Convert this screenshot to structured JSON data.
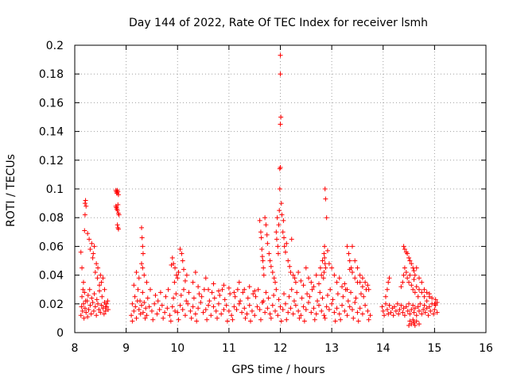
{
  "chart_data": {
    "type": "scatter",
    "title": "Day 144 of 2022, Rate Of TEC Index for receiver lsmh",
    "xlabel": "GPS time / hours",
    "ylabel": "ROTI / TECUs",
    "xlim": [
      8,
      16
    ],
    "ylim": [
      0,
      0.2
    ],
    "x_ticks": [
      "8",
      "9",
      "10",
      "11",
      "12",
      "13",
      "14",
      "15",
      "16"
    ],
    "y_ticks": [
      "0",
      "0.02",
      "0.04",
      "0.06",
      "0.08",
      "0.1",
      "0.12",
      "0.14",
      "0.16",
      "0.18",
      "0.2"
    ],
    "grid": true,
    "marker": "+",
    "colors": {
      "series": "#ff0000",
      "grid": "#a0a0a0",
      "axis": "#000000"
    },
    "series": [
      {
        "x": [
          8.12,
          8.13,
          8.15,
          8.17,
          8.18,
          8.2,
          8.22,
          8.24,
          8.25,
          8.27,
          8.3,
          8.32,
          8.35,
          8.37,
          8.4,
          8.42,
          8.45,
          8.47,
          8.5,
          8.52,
          8.55,
          8.57,
          8.6,
          8.62,
          8.65,
          8.14,
          8.16,
          8.19,
          8.21,
          8.26,
          8.29,
          8.33,
          8.38,
          8.43,
          8.48,
          8.53,
          8.58,
          8.2,
          8.21,
          8.22,
          8.2,
          8.19,
          8.25,
          8.28,
          8.3,
          8.35,
          8.38,
          8.42,
          8.45,
          8.5,
          8.52,
          8.55,
          8.58,
          8.33,
          8.36,
          8.4,
          8.44,
          8.48,
          8.12,
          8.14,
          8.17,
          8.62,
          8.64,
          8.6,
          8.8,
          8.81,
          8.82,
          8.83,
          8.84,
          8.85,
          8.8,
          8.81,
          8.82,
          8.83,
          8.84,
          8.85,
          8.86,
          8.83,
          8.84,
          8.85,
          9.1,
          9.12,
          9.15,
          9.18,
          9.2,
          9.22,
          9.25,
          9.28,
          9.3,
          9.33,
          9.35,
          9.38,
          9.4,
          9.45,
          9.5,
          9.55,
          9.6,
          9.65,
          9.7,
          9.75,
          9.8,
          9.85,
          9.9,
          9.95,
          10.0,
          10.05,
          10.1,
          10.15,
          10.2,
          10.25,
          10.3,
          10.35,
          10.4,
          10.45,
          10.5,
          10.55,
          10.6,
          10.65,
          10.7,
          10.75,
          10.8,
          10.85,
          10.9,
          10.95,
          11.0,
          11.05,
          11.1,
          11.15,
          11.2,
          11.25,
          11.3,
          11.35,
          11.4,
          11.45,
          11.5,
          11.55,
          11.6,
          11.65,
          11.7,
          11.75,
          11.8,
          11.85,
          11.9,
          11.95,
          12.0,
          12.05,
          12.1,
          12.15,
          12.2,
          12.25,
          12.3,
          12.35,
          12.4,
          12.45,
          12.5,
          12.55,
          12.6,
          12.65,
          12.7,
          12.75,
          12.8,
          12.85,
          12.9,
          12.95,
          13.0,
          13.05,
          13.1,
          13.15,
          13.2,
          13.25,
          13.3,
          13.35,
          13.4,
          13.45,
          13.5,
          13.55,
          13.6,
          13.65,
          13.7,
          13.75,
          9.12,
          9.17,
          9.23,
          9.27,
          9.32,
          9.37,
          9.42,
          9.47,
          9.52,
          9.57,
          9.62,
          9.67,
          9.72,
          9.77,
          9.82,
          9.87,
          9.92,
          9.97,
          10.02,
          10.07,
          10.12,
          10.17,
          10.22,
          10.27,
          10.32,
          10.37,
          10.42,
          10.47,
          10.52,
          10.57,
          10.62,
          10.67,
          10.72,
          10.77,
          10.82,
          10.87,
          10.92,
          10.97,
          11.02,
          11.07,
          11.12,
          11.17,
          11.22,
          11.27,
          11.32,
          11.37,
          11.42,
          11.47,
          11.52,
          11.57,
          11.62,
          11.67,
          11.72,
          11.77,
          11.82,
          11.87,
          11.92,
          11.97,
          12.02,
          12.07,
          12.12,
          12.17,
          12.22,
          12.27,
          12.32,
          12.37,
          12.42,
          12.47,
          12.52,
          12.57,
          12.62,
          12.67,
          12.72,
          12.77,
          12.82,
          12.87,
          12.92,
          12.97,
          13.02,
          13.07,
          13.12,
          13.17,
          13.22,
          13.27,
          13.32,
          13.37,
          13.42,
          13.47,
          13.52,
          13.57,
          13.62,
          13.67,
          13.72,
          9.3,
          9.31,
          9.32,
          9.33,
          9.3,
          9.32,
          9.35,
          9.4,
          9.25,
          9.2,
          9.15,
          9.9,
          9.92,
          9.95,
          9.98,
          10.0,
          10.02,
          10.05,
          10.08,
          10.1,
          10.12,
          10.15,
          10.18,
          9.88,
          9.94,
          10.3,
          10.35,
          10.4,
          10.55,
          10.6,
          10.7,
          10.8,
          10.9,
          11.0,
          11.1,
          11.2,
          11.3,
          11.4,
          11.5,
          11.6,
          11.62,
          11.63,
          11.64,
          11.65,
          11.66,
          11.67,
          11.68,
          11.7,
          11.72,
          11.74,
          11.75,
          11.78,
          11.8,
          11.82,
          11.85,
          11.88,
          11.9,
          11.92,
          11.93,
          11.94,
          11.95,
          11.96,
          11.97,
          11.98,
          11.99,
          12.0,
          12.0,
          12.0,
          12.0,
          12.01,
          11.99,
          12.02,
          12.03,
          12.05,
          12.06,
          12.07,
          12.08,
          12.1,
          12.12,
          12.15,
          12.18,
          12.2,
          12.22,
          12.25,
          12.28,
          12.3,
          12.35,
          12.4,
          12.45,
          12.5,
          12.55,
          12.6,
          12.65,
          12.7,
          12.75,
          12.78,
          12.8,
          12.82,
          12.84,
          12.85,
          12.86,
          12.87,
          12.88,
          12.9,
          12.92,
          12.95,
          13.0,
          13.05,
          13.1,
          13.15,
          13.2,
          13.25,
          13.3,
          13.35,
          13.4,
          13.45,
          13.5,
          13.55,
          13.6,
          12.85,
          12.86,
          12.87,
          12.88,
          13.3,
          13.33,
          13.35,
          13.38,
          13.4,
          13.45,
          13.5,
          13.55,
          13.6,
          13.65,
          13.7,
          13.72,
          13.98,
          14.0,
          14.02,
          14.05,
          14.08,
          14.1,
          14.12,
          14.15,
          14.18,
          14.2,
          14.22,
          14.25,
          14.28,
          14.3,
          14.32,
          14.35,
          14.38,
          14.4,
          14.42,
          14.45,
          14.48,
          14.5,
          14.52,
          14.55,
          14.58,
          14.6,
          14.62,
          14.65,
          14.68,
          14.7,
          14.72,
          14.75,
          14.78,
          14.8,
          14.82,
          14.85,
          14.88,
          14.9,
          14.92,
          14.95,
          14.98,
          15.0,
          15.02,
          15.05,
          14.05,
          14.08,
          14.1,
          14.12,
          14.35,
          14.38,
          14.4,
          14.42,
          14.45,
          14.47,
          14.5,
          14.52,
          14.55,
          14.58,
          14.6,
          14.62,
          14.65,
          14.68,
          14.7,
          14.75,
          14.8,
          14.85,
          14.9,
          14.95,
          15.0,
          15.02,
          15.05,
          14.4,
          14.42,
          14.45,
          14.47,
          14.5,
          14.52,
          14.55,
          14.58,
          14.6,
          14.62,
          14.65,
          14.7,
          14.75,
          14.8,
          14.85,
          14.9,
          14.5,
          14.52,
          14.55,
          14.58,
          14.6,
          14.62,
          14.65,
          14.7
        ],
        "y": [
          0.012,
          0.018,
          0.015,
          0.02,
          0.01,
          0.017,
          0.014,
          0.022,
          0.011,
          0.016,
          0.019,
          0.013,
          0.021,
          0.015,
          0.018,
          0.012,
          0.02,
          0.016,
          0.014,
          0.019,
          0.017,
          0.013,
          0.015,
          0.018,
          0.016,
          0.025,
          0.03,
          0.028,
          0.022,
          0.026,
          0.03,
          0.024,
          0.027,
          0.023,
          0.029,
          0.025,
          0.021,
          0.09,
          0.092,
          0.088,
          0.082,
          0.071,
          0.069,
          0.065,
          0.058,
          0.052,
          0.06,
          0.048,
          0.045,
          0.04,
          0.035,
          0.038,
          0.03,
          0.062,
          0.055,
          0.042,
          0.038,
          0.033,
          0.056,
          0.045,
          0.035,
          0.02,
          0.022,
          0.018,
          0.099,
          0.098,
          0.097,
          0.099,
          0.098,
          0.096,
          0.088,
          0.087,
          0.086,
          0.085,
          0.089,
          0.083,
          0.082,
          0.075,
          0.073,
          0.072,
          0.012,
          0.02,
          0.015,
          0.018,
          0.01,
          0.022,
          0.016,
          0.013,
          0.019,
          0.014,
          0.021,
          0.017,
          0.012,
          0.018,
          0.015,
          0.02,
          0.013,
          0.016,
          0.019,
          0.014,
          0.017,
          0.012,
          0.018,
          0.015,
          0.014,
          0.019,
          0.016,
          0.012,
          0.02,
          0.015,
          0.018,
          0.013,
          0.017,
          0.021,
          0.014,
          0.016,
          0.019,
          0.012,
          0.018,
          0.015,
          0.02,
          0.013,
          0.016,
          0.019,
          0.015,
          0.012,
          0.018,
          0.016,
          0.02,
          0.014,
          0.017,
          0.013,
          0.019,
          0.015,
          0.012,
          0.018,
          0.016,
          0.021,
          0.014,
          0.017,
          0.013,
          0.019,
          0.015,
          0.012,
          0.018,
          0.016,
          0.02,
          0.014,
          0.017,
          0.013,
          0.019,
          0.015,
          0.012,
          0.018,
          0.016,
          0.021,
          0.014,
          0.017,
          0.013,
          0.019,
          0.015,
          0.012,
          0.018,
          0.016,
          0.02,
          0.014,
          0.017,
          0.013,
          0.019,
          0.015,
          0.012,
          0.018,
          0.016,
          0.021,
          0.014,
          0.017,
          0.013,
          0.019,
          0.015,
          0.012,
          0.008,
          0.025,
          0.03,
          0.022,
          0.028,
          0.01,
          0.024,
          0.03,
          0.009,
          0.026,
          0.022,
          0.028,
          0.01,
          0.025,
          0.03,
          0.008,
          0.024,
          0.027,
          0.009,
          0.026,
          0.03,
          0.022,
          0.028,
          0.01,
          0.024,
          0.008,
          0.027,
          0.025,
          0.03,
          0.009,
          0.022,
          0.028,
          0.024,
          0.01,
          0.026,
          0.03,
          0.023,
          0.008,
          0.027,
          0.009,
          0.025,
          0.03,
          0.022,
          0.028,
          0.01,
          0.024,
          0.008,
          0.027,
          0.025,
          0.03,
          0.009,
          0.022,
          0.028,
          0.024,
          0.01,
          0.026,
          0.03,
          0.023,
          0.008,
          0.027,
          0.009,
          0.025,
          0.03,
          0.022,
          0.028,
          0.01,
          0.024,
          0.008,
          0.027,
          0.025,
          0.03,
          0.009,
          0.022,
          0.028,
          0.024,
          0.01,
          0.026,
          0.03,
          0.023,
          0.008,
          0.027,
          0.009,
          0.025,
          0.03,
          0.022,
          0.028,
          0.01,
          0.024,
          0.008,
          0.027,
          0.025,
          0.03,
          0.009,
          0.073,
          0.066,
          0.06,
          0.055,
          0.048,
          0.045,
          0.04,
          0.035,
          0.038,
          0.042,
          0.033,
          0.052,
          0.048,
          0.045,
          0.04,
          0.038,
          0.042,
          0.058,
          0.055,
          0.05,
          0.044,
          0.036,
          0.04,
          0.047,
          0.035,
          0.035,
          0.042,
          0.032,
          0.038,
          0.03,
          0.034,
          0.029,
          0.033,
          0.031,
          0.028,
          0.035,
          0.03,
          0.032,
          0.029,
          0.078,
          0.07,
          0.066,
          0.058,
          0.053,
          0.05,
          0.045,
          0.04,
          0.08,
          0.075,
          0.068,
          0.062,
          0.055,
          0.05,
          0.046,
          0.042,
          0.038,
          0.035,
          0.07,
          0.065,
          0.08,
          0.06,
          0.055,
          0.075,
          0.085,
          0.1,
          0.115,
          0.145,
          0.18,
          0.193,
          0.15,
          0.114,
          0.09,
          0.082,
          0.07,
          0.078,
          0.066,
          0.06,
          0.056,
          0.062,
          0.05,
          0.046,
          0.042,
          0.065,
          0.04,
          0.038,
          0.035,
          0.042,
          0.036,
          0.033,
          0.045,
          0.038,
          0.035,
          0.032,
          0.04,
          0.034,
          0.045,
          0.04,
          0.05,
          0.038,
          0.042,
          0.06,
          0.1,
          0.093,
          0.08,
          0.057,
          0.048,
          0.045,
          0.04,
          0.035,
          0.038,
          0.032,
          0.034,
          0.03,
          0.044,
          0.06,
          0.05,
          0.045,
          0.035,
          0.032,
          0.055,
          0.052,
          0.048,
          0.045,
          0.06,
          0.055,
          0.05,
          0.045,
          0.042,
          0.038,
          0.035,
          0.04,
          0.038,
          0.035,
          0.033,
          0.03,
          0.018,
          0.015,
          0.012,
          0.02,
          0.016,
          0.013,
          0.019,
          0.014,
          0.017,
          0.012,
          0.018,
          0.015,
          0.02,
          0.013,
          0.016,
          0.019,
          0.014,
          0.017,
          0.012,
          0.018,
          0.015,
          0.02,
          0.013,
          0.016,
          0.019,
          0.014,
          0.017,
          0.012,
          0.018,
          0.015,
          0.02,
          0.013,
          0.016,
          0.019,
          0.014,
          0.017,
          0.012,
          0.018,
          0.015,
          0.02,
          0.013,
          0.016,
          0.019,
          0.014,
          0.025,
          0.03,
          0.035,
          0.038,
          0.032,
          0.035,
          0.04,
          0.045,
          0.042,
          0.038,
          0.035,
          0.04,
          0.033,
          0.03,
          0.037,
          0.028,
          0.032,
          0.025,
          0.03,
          0.028,
          0.025,
          0.022,
          0.027,
          0.024,
          0.02,
          0.023,
          0.021,
          0.06,
          0.058,
          0.056,
          0.055,
          0.052,
          0.05,
          0.048,
          0.045,
          0.043,
          0.04,
          0.045,
          0.038,
          0.035,
          0.03,
          0.028,
          0.025,
          0.005,
          0.008,
          0.006,
          0.009,
          0.007,
          0.005,
          0.008,
          0.006
        ]
      }
    ]
  }
}
